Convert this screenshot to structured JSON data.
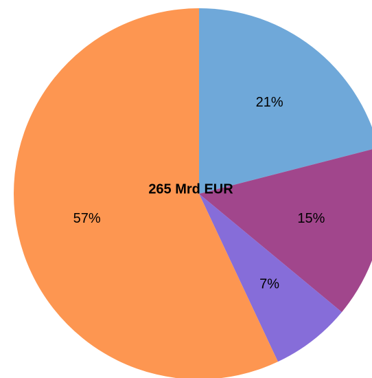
{
  "chart_data": {
    "type": "pie",
    "title": "265 Mrd EUR",
    "values": [
      21,
      15,
      7,
      57
    ],
    "value_labels": [
      "21%",
      "15%",
      "7%",
      "57%"
    ],
    "colors": [
      "#6fa8d9",
      "#a1468c",
      "#866dd9",
      "#fd9651"
    ]
  }
}
